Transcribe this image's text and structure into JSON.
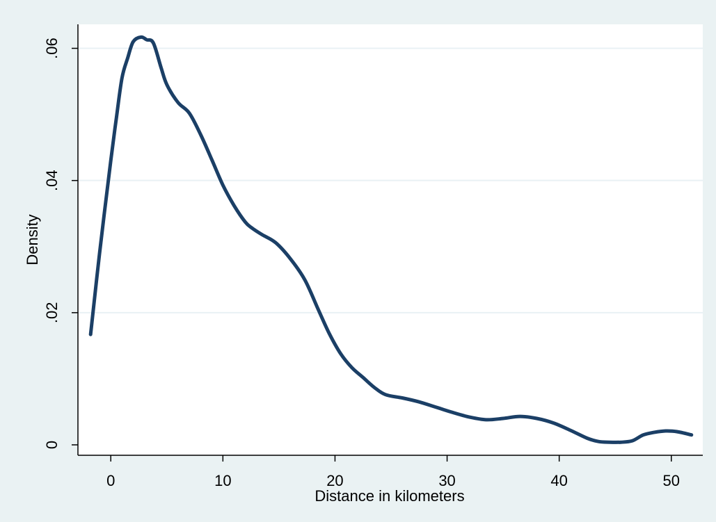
{
  "chart_data": {
    "type": "line",
    "title": "",
    "xlabel": "Distance in kilometers",
    "ylabel": "Density",
    "xlim": [
      -2,
      52
    ],
    "ylim": [
      0,
      0.063
    ],
    "x_ticks": [
      0,
      10,
      20,
      30,
      40,
      50
    ],
    "x_tick_labels": [
      "0",
      "10",
      "20",
      "30",
      "40",
      "50"
    ],
    "y_ticks": [
      0,
      0.02,
      0.04,
      0.06
    ],
    "y_tick_labels": [
      "0",
      ".02",
      ".04",
      ".06"
    ],
    "grid": "horizontal",
    "legend": "none",
    "colors": {
      "line": "#1b3f66",
      "background": "#eaf2f3",
      "plot_area": "#ffffff",
      "grid": "#e9f1f4"
    },
    "series": [
      {
        "x": [
          -1.8,
          -1,
          0,
          0.5,
          1,
          1.5,
          2,
          2.7,
          3.2,
          3.8,
          4.5,
          5,
          6,
          7,
          8,
          9,
          10,
          11,
          12,
          12.6,
          13.5,
          14.7,
          16,
          17.3,
          18.5,
          19.5,
          20.5,
          21.5,
          22.5,
          23.5,
          24.5,
          26,
          27.5,
          29,
          30.5,
          32,
          33.5,
          35,
          36.5,
          38,
          39.5,
          41,
          42.5,
          43.5,
          44.5,
          45.5,
          46.5,
          47.5,
          48.5,
          49.5,
          50.5,
          51.8
        ],
        "y": [
          0.0167,
          0.029,
          0.043,
          0.0495,
          0.0555,
          0.0585,
          0.061,
          0.0617,
          0.0613,
          0.0608,
          0.057,
          0.0545,
          0.0518,
          0.0502,
          0.047,
          0.0432,
          0.0393,
          0.0362,
          0.0337,
          0.0328,
          0.0318,
          0.0306,
          0.0282,
          0.025,
          0.0205,
          0.0168,
          0.0138,
          0.0117,
          0.0102,
          0.0087,
          0.0076,
          0.0071,
          0.0065,
          0.0057,
          0.0049,
          0.0042,
          0.0038,
          0.004,
          0.0043,
          0.004,
          0.0033,
          0.0022,
          0.001,
          0.0005,
          0.0004,
          0.0004,
          0.0006,
          0.0015,
          0.0019,
          0.0021,
          0.002,
          0.0015
        ]
      }
    ]
  }
}
